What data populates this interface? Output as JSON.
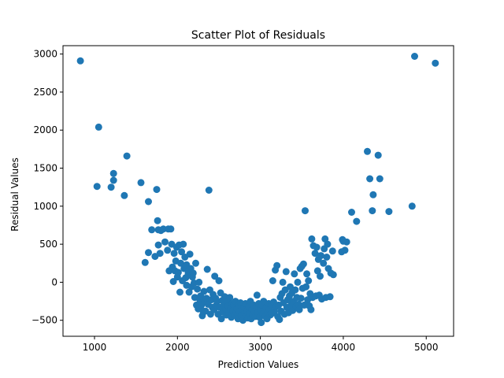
{
  "chart_data": {
    "type": "scatter",
    "title": "Scatter Plot of Residuals",
    "xlabel": "Prediction Values",
    "ylabel": "Residual Values",
    "xlim": [
      620,
      5330
    ],
    "ylim": [
      -710,
      3110
    ],
    "xticks": [
      1000,
      2000,
      3000,
      4000,
      5000
    ],
    "yticks": [
      -500,
      0,
      500,
      1000,
      1500,
      2000,
      2500,
      3000
    ],
    "grid": false,
    "color": "#1f77b4",
    "points": [
      [
        830,
        2910
      ],
      [
        1050,
        2040
      ],
      [
        1030,
        1260
      ],
      [
        1200,
        1250
      ],
      [
        1230,
        1430
      ],
      [
        1230,
        1340
      ],
      [
        1360,
        1140
      ],
      [
        1390,
        1660
      ],
      [
        1560,
        1310
      ],
      [
        1610,
        260
      ],
      [
        1650,
        1060
      ],
      [
        1650,
        390
      ],
      [
        1690,
        690
      ],
      [
        1730,
        340
      ],
      [
        1750,
        1220
      ],
      [
        1760,
        810
      ],
      [
        1770,
        690
      ],
      [
        1770,
        490
      ],
      [
        1790,
        380
      ],
      [
        1800,
        680
      ],
      [
        1830,
        700
      ],
      [
        1850,
        530
      ],
      [
        1880,
        420
      ],
      [
        1890,
        700
      ],
      [
        1900,
        150
      ],
      [
        1920,
        700
      ],
      [
        1930,
        500
      ],
      [
        1940,
        200
      ],
      [
        1950,
        10
      ],
      [
        1960,
        380
      ],
      [
        1970,
        150
      ],
      [
        1980,
        280
      ],
      [
        1990,
        460
      ],
      [
        2000,
        70
      ],
      [
        2010,
        130
      ],
      [
        2020,
        490
      ],
      [
        2030,
        -130
      ],
      [
        2040,
        250
      ],
      [
        2050,
        400
      ],
      [
        2060,
        20
      ],
      [
        2070,
        500
      ],
      [
        2080,
        180
      ],
      [
        2090,
        330
      ],
      [
        2100,
        60
      ],
      [
        2110,
        -40
      ],
      [
        2110,
        230
      ],
      [
        2130,
        120
      ],
      [
        2140,
        -130
      ],
      [
        2150,
        370
      ],
      [
        2160,
        180
      ],
      [
        2170,
        -60
      ],
      [
        2180,
        70
      ],
      [
        2190,
        120
      ],
      [
        2200,
        -10
      ],
      [
        2210,
        -200
      ],
      [
        2220,
        250
      ],
      [
        2230,
        -300
      ],
      [
        2240,
        -90
      ],
      [
        2250,
        -350
      ],
      [
        2260,
        0
      ],
      [
        2270,
        -230
      ],
      [
        2280,
        -180
      ],
      [
        2290,
        -300
      ],
      [
        2300,
        -440
      ],
      [
        2310,
        -380
      ],
      [
        2320,
        -120
      ],
      [
        2330,
        -260
      ],
      [
        2340,
        -380
      ],
      [
        2350,
        -210
      ],
      [
        2360,
        170
      ],
      [
        2370,
        -290
      ],
      [
        2380,
        1210
      ],
      [
        2390,
        -100
      ],
      [
        2400,
        -420
      ],
      [
        2410,
        -230
      ],
      [
        2420,
        -330
      ],
      [
        2430,
        -160
      ],
      [
        2440,
        -360
      ],
      [
        2450,
        80
      ],
      [
        2460,
        -210
      ],
      [
        2470,
        -300
      ],
      [
        2480,
        -250
      ],
      [
        2490,
        -420
      ],
      [
        2500,
        20
      ],
      [
        2510,
        -330
      ],
      [
        2520,
        -140
      ],
      [
        2530,
        -480
      ],
      [
        2540,
        -240
      ],
      [
        2550,
        -390
      ],
      [
        2560,
        -300
      ],
      [
        2570,
        -190
      ],
      [
        2580,
        -350
      ],
      [
        2590,
        -430
      ],
      [
        2600,
        -250
      ],
      [
        2610,
        -310
      ],
      [
        2620,
        -400
      ],
      [
        2630,
        -200
      ],
      [
        2640,
        -350
      ],
      [
        2650,
        -460
      ],
      [
        2660,
        -280
      ],
      [
        2670,
        -370
      ],
      [
        2680,
        -300
      ],
      [
        2690,
        -430
      ],
      [
        2700,
        -250
      ],
      [
        2710,
        -400
      ],
      [
        2720,
        -350
      ],
      [
        2730,
        -480
      ],
      [
        2740,
        -300
      ],
      [
        2750,
        -390
      ],
      [
        2760,
        -270
      ],
      [
        2770,
        -440
      ],
      [
        2780,
        -350
      ],
      [
        2790,
        -500
      ],
      [
        2800,
        -330
      ],
      [
        2810,
        -400
      ],
      [
        2820,
        -280
      ],
      [
        2830,
        -450
      ],
      [
        2840,
        -370
      ],
      [
        2850,
        -470
      ],
      [
        2860,
        -320
      ],
      [
        2870,
        -410
      ],
      [
        2880,
        -250
      ],
      [
        2890,
        -480
      ],
      [
        2900,
        -360
      ],
      [
        2910,
        -430
      ],
      [
        2920,
        -300
      ],
      [
        2930,
        -390
      ],
      [
        2940,
        -450
      ],
      [
        2950,
        -330
      ],
      [
        2960,
        -170
      ],
      [
        2970,
        -400
      ],
      [
        2980,
        -280
      ],
      [
        2990,
        -460
      ],
      [
        3000,
        -350
      ],
      [
        3010,
        -530
      ],
      [
        3020,
        -300
      ],
      [
        3030,
        -420
      ],
      [
        3040,
        -250
      ],
      [
        3050,
        -380
      ],
      [
        3060,
        -450
      ],
      [
        3070,
        -330
      ],
      [
        3080,
        -480
      ],
      [
        3090,
        -400
      ],
      [
        3100,
        -280
      ],
      [
        3110,
        -360
      ],
      [
        3120,
        -430
      ],
      [
        3130,
        -300
      ],
      [
        3140,
        -410
      ],
      [
        3150,
        20
      ],
      [
        3160,
        -260
      ],
      [
        3170,
        -380
      ],
      [
        3180,
        160
      ],
      [
        3190,
        -320
      ],
      [
        3200,
        220
      ],
      [
        3210,
        -450
      ],
      [
        3220,
        -300
      ],
      [
        3230,
        -490
      ],
      [
        3240,
        -200
      ],
      [
        3250,
        -380
      ],
      [
        3260,
        -150
      ],
      [
        3270,
        0
      ],
      [
        3280,
        -270
      ],
      [
        3290,
        -420
      ],
      [
        3300,
        -100
      ],
      [
        3310,
        140
      ],
      [
        3320,
        -330
      ],
      [
        3330,
        -230
      ],
      [
        3340,
        -400
      ],
      [
        3350,
        -180
      ],
      [
        3360,
        -60
      ],
      [
        3370,
        -300
      ],
      [
        3380,
        -140
      ],
      [
        3390,
        -370
      ],
      [
        3400,
        -250
      ],
      [
        3410,
        110
      ],
      [
        3420,
        -100
      ],
      [
        3430,
        -320
      ],
      [
        3440,
        -200
      ],
      [
        3450,
        0
      ],
      [
        3460,
        -290
      ],
      [
        3470,
        -360
      ],
      [
        3480,
        180
      ],
      [
        3490,
        -210
      ],
      [
        3500,
        210
      ],
      [
        3510,
        -80
      ],
      [
        3520,
        240
      ],
      [
        3530,
        -300
      ],
      [
        3540,
        940
      ],
      [
        3550,
        -60
      ],
      [
        3560,
        110
      ],
      [
        3570,
        -230
      ],
      [
        3580,
        20
      ],
      [
        3590,
        -310
      ],
      [
        3600,
        -150
      ],
      [
        3610,
        -360
      ],
      [
        3620,
        570
      ],
      [
        3630,
        -200
      ],
      [
        3640,
        480
      ],
      [
        3660,
        380
      ],
      [
        3670,
        -180
      ],
      [
        3680,
        460
      ],
      [
        3690,
        150
      ],
      [
        3700,
        300
      ],
      [
        3710,
        -170
      ],
      [
        3720,
        80
      ],
      [
        3730,
        350
      ],
      [
        3740,
        -220
      ],
      [
        3760,
        250
      ],
      [
        3770,
        440
      ],
      [
        3780,
        570
      ],
      [
        3790,
        -200
      ],
      [
        3800,
        330
      ],
      [
        3810,
        500
      ],
      [
        3820,
        180
      ],
      [
        3840,
        -190
      ],
      [
        3850,
        120
      ],
      [
        3870,
        410
      ],
      [
        3880,
        100
      ],
      [
        3980,
        400
      ],
      [
        3990,
        560
      ],
      [
        4000,
        540
      ],
      [
        4020,
        420
      ],
      [
        4040,
        530
      ],
      [
        4100,
        920
      ],
      [
        4160,
        800
      ],
      [
        4290,
        1720
      ],
      [
        4320,
        1360
      ],
      [
        4350,
        940
      ],
      [
        4360,
        1150
      ],
      [
        4420,
        1670
      ],
      [
        4440,
        1360
      ],
      [
        4550,
        930
      ],
      [
        4830,
        1000
      ],
      [
        4860,
        2970
      ],
      [
        5110,
        2880
      ]
    ]
  }
}
